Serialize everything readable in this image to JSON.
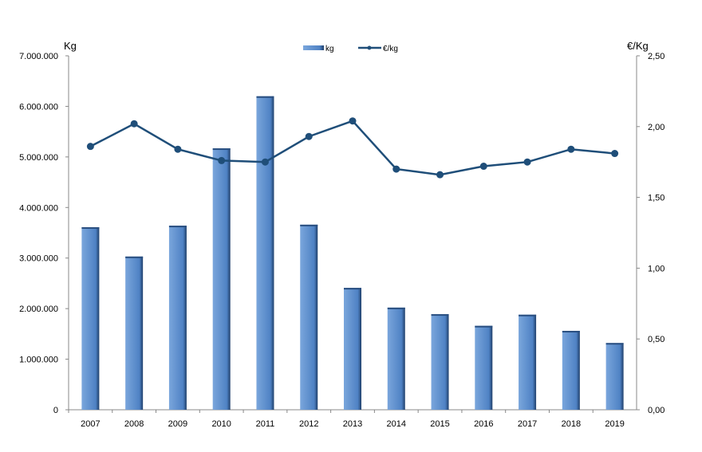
{
  "chart_data": {
    "type": "bar+line",
    "categories": [
      "2007",
      "2008",
      "2009",
      "2010",
      "2011",
      "2012",
      "2013",
      "2014",
      "2015",
      "2016",
      "2017",
      "2018",
      "2019"
    ],
    "series": [
      {
        "name": "kg",
        "type": "bar",
        "axis": "left",
        "color": "#5b8fd0",
        "values": [
          3610000,
          3030000,
          3640000,
          5170000,
          6200000,
          3660000,
          2410000,
          2020000,
          1890000,
          1660000,
          1880000,
          1560000,
          1320000
        ]
      },
      {
        "name": "€/kg",
        "type": "line",
        "axis": "right",
        "color": "#1f4e79",
        "values": [
          1.86,
          2.02,
          1.84,
          1.76,
          1.75,
          1.93,
          2.04,
          1.7,
          1.66,
          1.72,
          1.75,
          1.84,
          1.81
        ]
      }
    ],
    "ylabel": "Kg",
    "y2label": "€/Kg",
    "ylim": [
      0,
      7000000
    ],
    "y2lim": [
      0,
      2.5
    ],
    "yticks": [
      "0",
      "1.000.000",
      "2.000.000",
      "3.000.000",
      "4.000.000",
      "5.000.000",
      "6.000.000",
      "7.000.000"
    ],
    "y2ticks": [
      "0,00",
      "0,50",
      "1,00",
      "1,50",
      "2,00",
      "2,50"
    ],
    "legend": "top-center",
    "grid": false
  }
}
